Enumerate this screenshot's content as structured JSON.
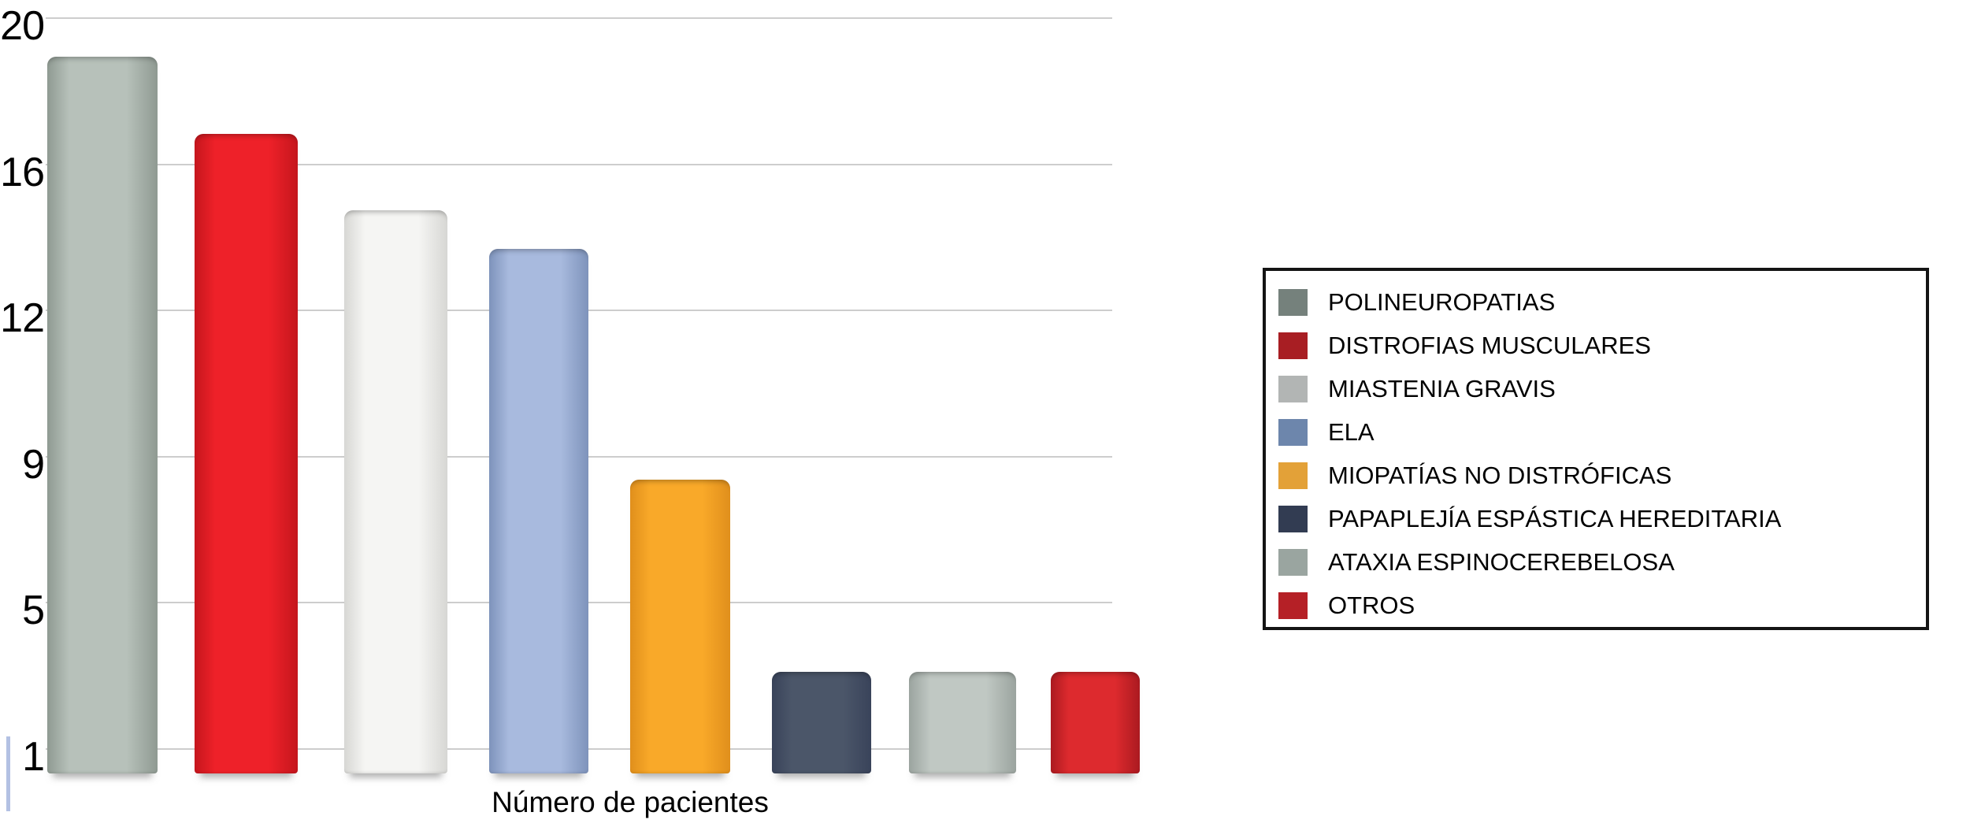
{
  "chart_data": {
    "type": "bar",
    "title": "",
    "xlabel": "Número de pacientes",
    "ylabel": "",
    "y_tick_labels": [
      "20",
      "16",
      "12",
      "9",
      "5",
      "1"
    ],
    "ylim": [
      1,
      20
    ],
    "grid": true,
    "grid_color": "#cdcdcd",
    "background_color": "#ffffff",
    "legend_position": "right",
    "legend_border_color": "#141414",
    "categories": [
      "POLINEUROPATIAS",
      "DISTROFIAS MUSCULARES",
      "MIASTENIA GRAVIS",
      "ELA",
      "MIOPATÍAS NO DISTRÓFICAS",
      "PAPAPLEJÍA ESPÁSTICA HEREDITARIA",
      "ATAXIA ESPINOCEREBELOSA",
      "OTROS"
    ],
    "values": [
      19,
      17,
      15,
      14,
      8,
      3,
      3,
      3
    ],
    "series": [
      {
        "label": "POLINEUROPATIAS",
        "value": 19,
        "bar_face": "#b7c1ba",
        "bar_edge": "#8f9a92",
        "legend_color": "#75817c"
      },
      {
        "label": "DISTROFIAS MUSCULARES",
        "value": 17,
        "bar_face": "#ee2129",
        "bar_edge": "#c5161d",
        "legend_color": "#a81e23"
      },
      {
        "label": "MIASTENIA GRAVIS",
        "value": 15,
        "bar_face": "#f5f5f3",
        "bar_edge": "#d7d7d4",
        "legend_color": "#b2b5b4"
      },
      {
        "label": "ELA",
        "value": 14,
        "bar_face": "#a8bade",
        "bar_edge": "#7e93bb",
        "legend_color": "#6d86ac"
      },
      {
        "label": "MIOPATÍAS NO DISTRÓFICAS",
        "value": 8,
        "bar_face": "#f9a929",
        "bar_edge": "#e08f1c",
        "legend_color": "#e3a138"
      },
      {
        "label": "PAPAPLEJÍA ESPÁSTICA HEREDITARIA",
        "value": 3,
        "bar_face": "#4b5669",
        "bar_edge": "#39435a",
        "legend_color": "#323c52"
      },
      {
        "label": "ATAXIA ESPINOCEREBELOSA",
        "value": 3,
        "bar_face": "#c0c8c3",
        "bar_edge": "#9ba49f",
        "legend_color": "#9aa5a0"
      },
      {
        "label": "OTROS",
        "value": 3,
        "bar_face": "#dd2a2e",
        "bar_edge": "#ab1a20",
        "legend_color": "#b52026"
      }
    ]
  }
}
